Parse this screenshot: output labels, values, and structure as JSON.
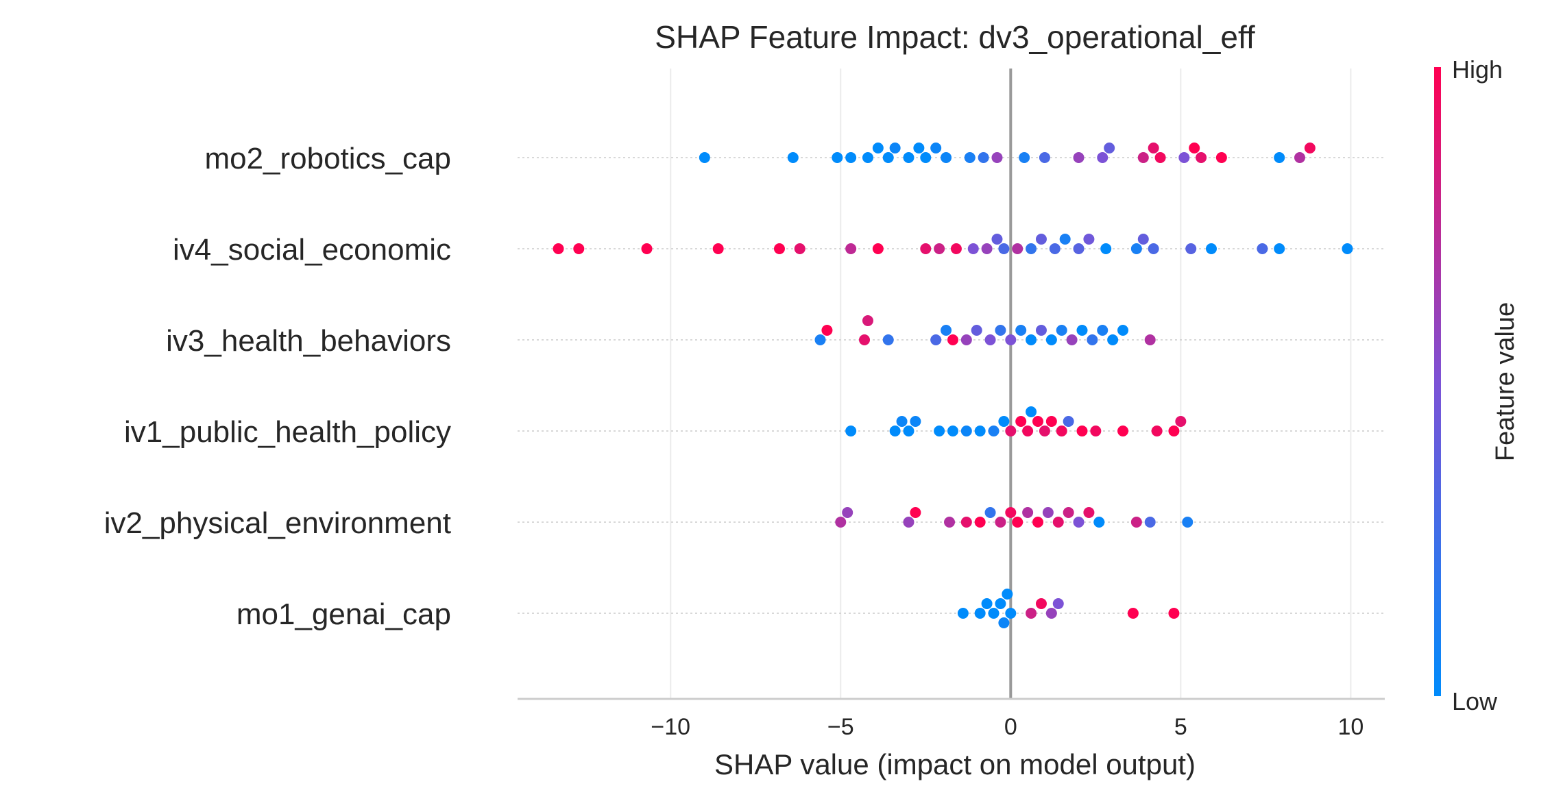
{
  "chart_data": {
    "type": "scatter",
    "subtype": "shap-beeswarm",
    "title": "SHAP Feature Impact: dv3_operational_eff",
    "xlabel": "SHAP value (impact on model output)",
    "xlim": [
      -14.5,
      11.0
    ],
    "xticks": [
      -10,
      -5,
      0,
      5,
      10
    ],
    "xtick_labels": [
      "−10",
      "−5",
      "0",
      "5",
      "10"
    ],
    "grid": true,
    "zero_line": true,
    "colorbar": {
      "title": "Feature value",
      "high_label": "High",
      "low_label": "Low",
      "low_color": "#008bfb",
      "mid_color": "#7c52d6",
      "high_color": "#ff0051"
    },
    "features": [
      {
        "name": "mo2_robotics_cap",
        "points": [
          {
            "x": -9.0,
            "v": 0.0
          },
          {
            "x": -6.4,
            "v": 0.0
          },
          {
            "x": -5.1,
            "v": 0.0
          },
          {
            "x": -4.7,
            "v": 0.0
          },
          {
            "x": -4.2,
            "v": 0.0
          },
          {
            "x": -3.9,
            "v": 0.0
          },
          {
            "x": -3.6,
            "v": 0.0
          },
          {
            "x": -3.4,
            "v": 0.05
          },
          {
            "x": -3.0,
            "v": 0.0
          },
          {
            "x": -2.7,
            "v": 0.0
          },
          {
            "x": -2.5,
            "v": 0.0
          },
          {
            "x": -2.2,
            "v": 0.05
          },
          {
            "x": -1.9,
            "v": 0.05
          },
          {
            "x": -1.2,
            "v": 0.1
          },
          {
            "x": -0.8,
            "v": 0.2
          },
          {
            "x": -0.4,
            "v": 0.6
          },
          {
            "x": 0.4,
            "v": 0.1
          },
          {
            "x": 1.0,
            "v": 0.3
          },
          {
            "x": 2.0,
            "v": 0.6
          },
          {
            "x": 2.7,
            "v": 0.5
          },
          {
            "x": 2.9,
            "v": 0.4
          },
          {
            "x": 3.9,
            "v": 0.8
          },
          {
            "x": 4.2,
            "v": 0.9
          },
          {
            "x": 4.4,
            "v": 0.95
          },
          {
            "x": 5.1,
            "v": 0.5
          },
          {
            "x": 5.4,
            "v": 1.0
          },
          {
            "x": 5.6,
            "v": 0.9
          },
          {
            "x": 6.2,
            "v": 1.0
          },
          {
            "x": 7.9,
            "v": 0.0
          },
          {
            "x": 8.5,
            "v": 0.7
          },
          {
            "x": 8.8,
            "v": 0.95
          }
        ]
      },
      {
        "name": "iv4_social_economic",
        "points": [
          {
            "x": -13.3,
            "v": 1.0
          },
          {
            "x": -12.7,
            "v": 1.0
          },
          {
            "x": -10.7,
            "v": 1.0
          },
          {
            "x": -8.6,
            "v": 1.0
          },
          {
            "x": -6.8,
            "v": 1.0
          },
          {
            "x": -6.2,
            "v": 0.9
          },
          {
            "x": -4.7,
            "v": 0.75
          },
          {
            "x": -3.9,
            "v": 1.0
          },
          {
            "x": -2.5,
            "v": 0.9
          },
          {
            "x": -2.1,
            "v": 0.8
          },
          {
            "x": -1.6,
            "v": 0.95
          },
          {
            "x": -1.1,
            "v": 0.5
          },
          {
            "x": -0.7,
            "v": 0.6
          },
          {
            "x": -0.4,
            "v": 0.4
          },
          {
            "x": -0.2,
            "v": 0.3
          },
          {
            "x": 0.2,
            "v": 0.7
          },
          {
            "x": 0.6,
            "v": 0.2
          },
          {
            "x": 0.9,
            "v": 0.4
          },
          {
            "x": 1.3,
            "v": 0.3
          },
          {
            "x": 1.6,
            "v": 0.1
          },
          {
            "x": 2.0,
            "v": 0.35
          },
          {
            "x": 2.3,
            "v": 0.45
          },
          {
            "x": 2.8,
            "v": 0.0
          },
          {
            "x": 3.7,
            "v": 0.1
          },
          {
            "x": 3.9,
            "v": 0.4
          },
          {
            "x": 4.2,
            "v": 0.3
          },
          {
            "x": 5.3,
            "v": 0.35
          },
          {
            "x": 5.9,
            "v": 0.0
          },
          {
            "x": 7.4,
            "v": 0.3
          },
          {
            "x": 7.9,
            "v": 0.0
          },
          {
            "x": 9.9,
            "v": 0.0
          }
        ]
      },
      {
        "name": "iv3_health_behaviors",
        "points": [
          {
            "x": -5.6,
            "v": 0.1
          },
          {
            "x": -5.4,
            "v": 1.0
          },
          {
            "x": -4.3,
            "v": 0.9
          },
          {
            "x": -4.2,
            "v": 0.85
          },
          {
            "x": -3.6,
            "v": 0.2
          },
          {
            "x": -2.2,
            "v": 0.3
          },
          {
            "x": -1.9,
            "v": 0.1
          },
          {
            "x": -1.7,
            "v": 1.0
          },
          {
            "x": -1.3,
            "v": 0.6
          },
          {
            "x": -1.0,
            "v": 0.4
          },
          {
            "x": -0.6,
            "v": 0.5
          },
          {
            "x": -0.3,
            "v": 0.2
          },
          {
            "x": 0.0,
            "v": 0.5
          },
          {
            "x": 0.3,
            "v": 0.1
          },
          {
            "x": 0.6,
            "v": 0.0
          },
          {
            "x": 0.9,
            "v": 0.4
          },
          {
            "x": 1.2,
            "v": 0.0
          },
          {
            "x": 1.5,
            "v": 0.1
          },
          {
            "x": 1.8,
            "v": 0.6
          },
          {
            "x": 2.1,
            "v": 0.0
          },
          {
            "x": 2.4,
            "v": 0.2
          },
          {
            "x": 2.7,
            "v": 0.1
          },
          {
            "x": 3.0,
            "v": 0.0
          },
          {
            "x": 3.3,
            "v": 0.0
          },
          {
            "x": 4.1,
            "v": 0.7
          }
        ]
      },
      {
        "name": "iv1_public_health_policy",
        "points": [
          {
            "x": -4.7,
            "v": 0.0
          },
          {
            "x": -3.4,
            "v": 0.0
          },
          {
            "x": -3.2,
            "v": 0.05
          },
          {
            "x": -3.0,
            "v": 0.0
          },
          {
            "x": -2.8,
            "v": 0.05
          },
          {
            "x": -2.1,
            "v": 0.0
          },
          {
            "x": -1.7,
            "v": 0.0
          },
          {
            "x": -1.3,
            "v": 0.05
          },
          {
            "x": -0.9,
            "v": 0.0
          },
          {
            "x": -0.5,
            "v": 0.1
          },
          {
            "x": -0.2,
            "v": 0.0
          },
          {
            "x": 0.0,
            "v": 0.9
          },
          {
            "x": 0.3,
            "v": 1.0
          },
          {
            "x": 0.5,
            "v": 0.95
          },
          {
            "x": 0.8,
            "v": 1.0
          },
          {
            "x": 1.0,
            "v": 0.9
          },
          {
            "x": 1.2,
            "v": 1.0
          },
          {
            "x": 1.5,
            "v": 0.95
          },
          {
            "x": 2.1,
            "v": 1.0
          },
          {
            "x": 2.5,
            "v": 0.95
          },
          {
            "x": 3.3,
            "v": 1.0
          },
          {
            "x": 4.3,
            "v": 0.95
          },
          {
            "x": 4.8,
            "v": 1.0
          },
          {
            "x": 5.0,
            "v": 0.9
          },
          {
            "x": 0.6,
            "v": 0.0
          },
          {
            "x": 1.7,
            "v": 0.3
          }
        ]
      },
      {
        "name": "iv2_physical_environment",
        "points": [
          {
            "x": -5.0,
            "v": 0.7
          },
          {
            "x": -4.8,
            "v": 0.6
          },
          {
            "x": -3.0,
            "v": 0.6
          },
          {
            "x": -2.8,
            "v": 1.0
          },
          {
            "x": -1.8,
            "v": 0.7
          },
          {
            "x": -1.3,
            "v": 0.9
          },
          {
            "x": -0.9,
            "v": 1.0
          },
          {
            "x": -0.6,
            "v": 0.2
          },
          {
            "x": -0.3,
            "v": 0.8
          },
          {
            "x": 0.0,
            "v": 0.95
          },
          {
            "x": 0.2,
            "v": 1.0
          },
          {
            "x": 0.5,
            "v": 0.7
          },
          {
            "x": 0.8,
            "v": 1.0
          },
          {
            "x": 1.1,
            "v": 0.6
          },
          {
            "x": 1.4,
            "v": 0.9
          },
          {
            "x": 1.7,
            "v": 0.8
          },
          {
            "x": 2.0,
            "v": 0.5
          },
          {
            "x": 2.3,
            "v": 0.9
          },
          {
            "x": 2.6,
            "v": 0.0
          },
          {
            "x": 3.7,
            "v": 0.8
          },
          {
            "x": 4.1,
            "v": 0.3
          },
          {
            "x": 5.2,
            "v": 0.1
          }
        ]
      },
      {
        "name": "mo1_genai_cap",
        "points": [
          {
            "x": -1.4,
            "v": 0.0
          },
          {
            "x": -0.9,
            "v": 0.0
          },
          {
            "x": -0.7,
            "v": 0.0
          },
          {
            "x": -0.5,
            "v": 0.0
          },
          {
            "x": -0.3,
            "v": 0.0
          },
          {
            "x": -0.2,
            "v": 0.05
          },
          {
            "x": -0.1,
            "v": 0.0
          },
          {
            "x": 0.0,
            "v": 0.0
          },
          {
            "x": 0.6,
            "v": 0.8
          },
          {
            "x": 0.9,
            "v": 0.95
          },
          {
            "x": 1.2,
            "v": 0.6
          },
          {
            "x": 1.4,
            "v": 0.5
          },
          {
            "x": 3.6,
            "v": 1.0
          },
          {
            "x": 4.8,
            "v": 1.0
          }
        ]
      }
    ]
  }
}
